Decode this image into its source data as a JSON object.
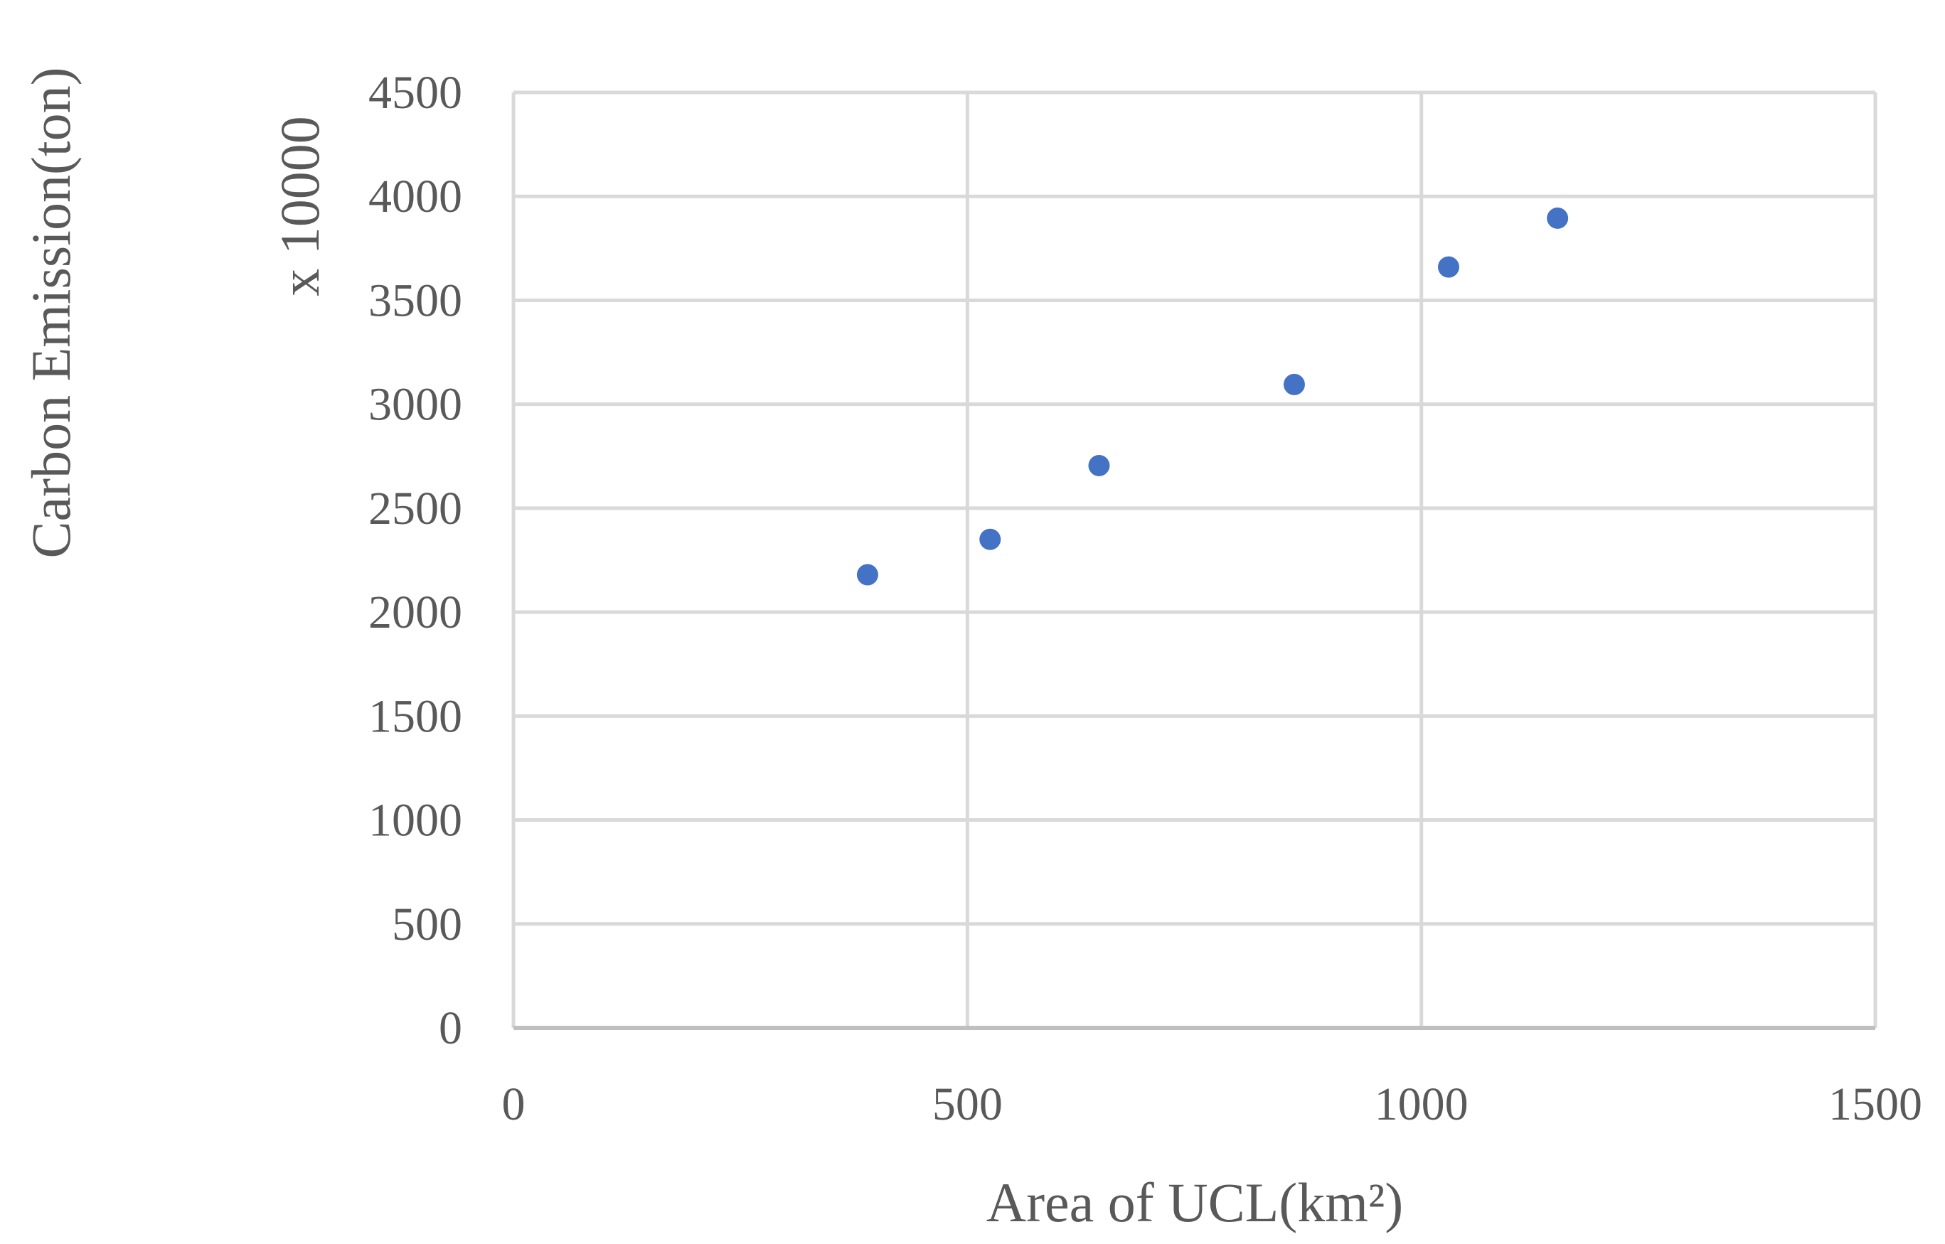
{
  "chart_data": {
    "type": "scatter",
    "title": "",
    "xlabel": "Area of UCL(km²)",
    "ylabel": "Carbon Emission(ton)",
    "ylabel_multiplier": "x 10000",
    "xlim": [
      0,
      1500
    ],
    "ylim": [
      0,
      4500
    ],
    "x_ticks": [
      "0",
      "500",
      "1000",
      "1500"
    ],
    "y_ticks": [
      "0",
      "500",
      "1000",
      "1500",
      "2000",
      "2500",
      "3000",
      "3500",
      "4000",
      "4500"
    ],
    "grid": true,
    "legend": "none",
    "series": [
      {
        "color": "#4472c4",
        "points": [
          {
            "x": 390,
            "y": 2180
          },
          {
            "x": 525,
            "y": 2350
          },
          {
            "x": 645,
            "y": 2705
          },
          {
            "x": 860,
            "y": 3095
          },
          {
            "x": 1030,
            "y": 3660
          },
          {
            "x": 1150,
            "y": 3895
          }
        ]
      }
    ]
  }
}
